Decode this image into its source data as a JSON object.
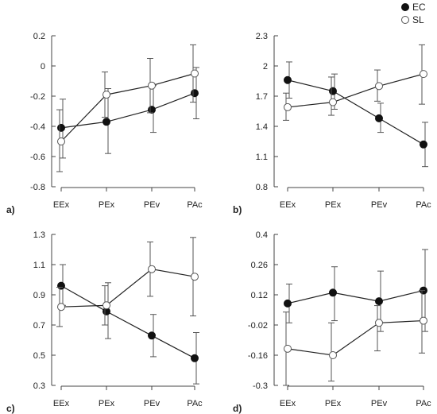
{
  "legend": {
    "position": "top-right",
    "entries": [
      {
        "label": "EC",
        "marker": "filled-circle"
      },
      {
        "label": "SL",
        "marker": "open-circle"
      }
    ]
  },
  "chart_data": [
    {
      "panel": "a)",
      "type": "line",
      "categories": [
        "EEx",
        "PEx",
        "PEv",
        "PAc"
      ],
      "yticks": [
        0.2,
        0,
        -0.2,
        -0.4,
        -0.6,
        -0.8
      ],
      "ytick_labels": [
        "0.2",
        "0",
        "-0.2",
        "-0.4",
        "-0.6",
        "-0.8"
      ],
      "ylim": [
        -0.8,
        0.2
      ],
      "series": [
        {
          "name": "EC",
          "values": [
            -0.41,
            -0.37,
            -0.29,
            -0.18
          ],
          "err_low": [
            -0.61,
            -0.58,
            -0.44,
            -0.35
          ],
          "err_high": [
            -0.22,
            -0.15,
            -0.13,
            -0.01
          ]
        },
        {
          "name": "SL",
          "values": [
            -0.5,
            -0.19,
            -0.13,
            -0.05
          ],
          "err_low": [
            -0.7,
            -0.34,
            -0.31,
            -0.24
          ],
          "err_high": [
            -0.29,
            -0.04,
            0.05,
            0.14
          ]
        }
      ]
    },
    {
      "panel": "b)",
      "type": "line",
      "categories": [
        "EEx",
        "PEx",
        "PEv",
        "PAc"
      ],
      "yticks": [
        2.3,
        2,
        1.7,
        1.4,
        1.1,
        0.8
      ],
      "ytick_labels": [
        "2.3",
        "2",
        "1.7",
        "1.4",
        "1.1",
        "0.8"
      ],
      "ylim": [
        0.8,
        2.3
      ],
      "series": [
        {
          "name": "EC",
          "values": [
            1.86,
            1.75,
            1.48,
            1.22
          ],
          "err_low": [
            1.68,
            1.57,
            1.34,
            1.0
          ],
          "err_high": [
            2.04,
            1.92,
            1.63,
            1.44
          ]
        },
        {
          "name": "SL",
          "values": [
            1.59,
            1.64,
            1.8,
            1.92
          ],
          "err_low": [
            1.46,
            1.51,
            1.65,
            1.62
          ],
          "err_high": [
            1.73,
            1.89,
            1.96,
            2.21
          ]
        }
      ]
    },
    {
      "panel": "c)",
      "type": "line",
      "categories": [
        "EEx",
        "PEx",
        "PEv",
        "PAc"
      ],
      "yticks": [
        1.3,
        1.1,
        0.9,
        0.7,
        0.5,
        0.3
      ],
      "ytick_labels": [
        "1.3",
        "1.1",
        "0.9",
        "0.7",
        "0.5",
        "0.3"
      ],
      "ylim": [
        0.3,
        1.3
      ],
      "series": [
        {
          "name": "EC",
          "values": [
            0.96,
            0.79,
            0.63,
            0.48
          ],
          "err_low": [
            0.83,
            0.61,
            0.49,
            0.31
          ],
          "err_high": [
            1.1,
            0.98,
            0.77,
            0.65
          ]
        },
        {
          "name": "SL",
          "values": [
            0.82,
            0.83,
            1.07,
            1.02
          ],
          "err_low": [
            0.69,
            0.7,
            0.89,
            0.76
          ],
          "err_high": [
            0.95,
            0.96,
            1.25,
            1.28
          ]
        }
      ]
    },
    {
      "panel": "d)",
      "type": "line",
      "categories": [
        "EEx",
        "PEx",
        "PEv",
        "PAc"
      ],
      "yticks": [
        0.4,
        0.26,
        0.12,
        -0.02,
        -0.16,
        -0.3
      ],
      "ytick_labels": [
        "0.4",
        "0.26",
        "0.12",
        "-0.02",
        "-0.16",
        "-0.3"
      ],
      "ylim": [
        -0.3,
        0.4
      ],
      "series": [
        {
          "name": "EC",
          "values": [
            0.08,
            0.13,
            0.09,
            0.14
          ],
          "err_low": [
            -0.01,
            0.0,
            -0.05,
            -0.05
          ],
          "err_high": [
            0.17,
            0.25,
            0.23,
            0.33
          ]
        },
        {
          "name": "SL",
          "values": [
            -0.13,
            -0.16,
            -0.01,
            0.0
          ],
          "err_low": [
            -0.3,
            -0.28,
            -0.14,
            -0.15
          ],
          "err_high": [
            0.04,
            -0.01,
            0.07,
            0.14
          ]
        }
      ]
    }
  ]
}
